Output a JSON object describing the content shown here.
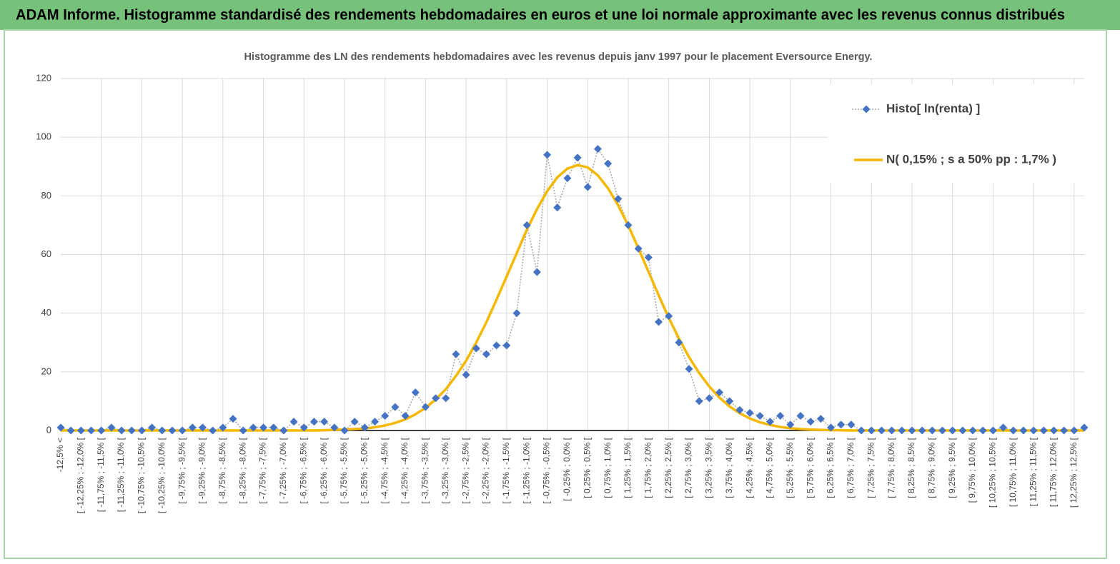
{
  "header": {
    "title": "ADAM Informe. Histogramme standardisé des rendements hebdomadaires en euros et une loi normale approximante avec les revenus connus distribués"
  },
  "chart_data": {
    "type": "line",
    "title": "Histogramme  des LN des rendements hebdomadaires avec les revenus depuis janv 1997 pour le placement Eversource Energy.",
    "categories": [
      "-12,5% <",
      null,
      "[ -12,25% ; -12,0% [",
      null,
      "[ -11,75% ; -11,5% [",
      null,
      "[ -11,25% ; -11,0% [",
      null,
      "[ -10,75% ; -10,5% [",
      null,
      "[ -10,25% ; -10,0% [",
      null,
      "[ -9,75% ; -9,5% [",
      null,
      "[ -9,25% ; -9,0% [",
      null,
      "[ -8,75% ; -8,5% [",
      null,
      "[ -8,25% ; -8,0% [",
      null,
      "[ -7,75% ; -7,5% [",
      null,
      "[ -7,25% ; -7,0% [",
      null,
      "[ -6,75% ; -6,5% [",
      null,
      "[ -6,25% ; -6,0% [",
      null,
      "[ -5,75% ; -5,5% [",
      null,
      "[ -5,25% ; -5,0% [",
      null,
      "[ -4,75% ; -4,5% [",
      null,
      "[ -4,25% ; -4,0% [",
      null,
      "[ -3,75% ; -3,5% [",
      null,
      "[ -3,25% ; -3,0% [",
      null,
      "[ -2,75% ; -2,5% [",
      null,
      "[ -2,25% ; -2,0% [",
      null,
      "[ -1,75% ; -1,5% [",
      null,
      "[ -1,25% ; -1,0% [",
      null,
      "[ -0,75% ; -0,5% [",
      null,
      "[ -0,25% ; 0,0% [",
      null,
      "[ 0,25% ; 0,5% [",
      null,
      "[ 0,75% ; 1,0% [",
      null,
      "[ 1,25% ; 1,5% [",
      null,
      "[ 1,75% ; 2,0% [",
      null,
      "[ 2,25% ; 2,5% [",
      null,
      "[ 2,75% ; 3,0% [",
      null,
      "[ 3,25% ; 3,5% [",
      null,
      "[ 3,75% ; 4,0% [",
      null,
      "[ 4,25% ; 4,5% [",
      null,
      "[ 4,75% ; 5,0% [",
      null,
      "[ 5,25% ; 5,5% [",
      null,
      "[ 5,75% ; 6,0% [",
      null,
      "[ 6,25% ; 6,5% [",
      null,
      "[ 6,75% ; 7,0% [",
      null,
      "[ 7,25% ; 7,5% [",
      null,
      "[ 7,75% ; 8,0% [",
      null,
      "[ 8,25% ; 8,5% [",
      null,
      "[ 8,75% ; 9,0% [",
      null,
      "[ 9,25% ; 9,5% [",
      null,
      "[ 9,75% ; 10,0% [",
      null,
      "[ 10,25% ; 10,5% [",
      null,
      "[ 10,75% ; 11,0% [",
      null,
      "[ 11,25% ; 11,5% [",
      null,
      "[ 11,75% ; 12,0% [",
      null,
      "[ 12,25% ; 12,5% [",
      null
    ],
    "series": [
      {
        "name": "Histo[ ln(renta) ]",
        "color": "#4472c4",
        "values": [
          1,
          0,
          0,
          0,
          0,
          1,
          0,
          0,
          0,
          1,
          0,
          0,
          0,
          1,
          1,
          0,
          1,
          4,
          0,
          1,
          1,
          1,
          0,
          3,
          1,
          3,
          3,
          1,
          0,
          3,
          1,
          3,
          5,
          8,
          5,
          13,
          8,
          11,
          11,
          26,
          19,
          28,
          26,
          29,
          29,
          40,
          70,
          54,
          94,
          76,
          86,
          93,
          83,
          96,
          91,
          79,
          70,
          62,
          59,
          37,
          39,
          30,
          21,
          10,
          11,
          13,
          10,
          7,
          6,
          5,
          3,
          5,
          2,
          5,
          3,
          4,
          1,
          2,
          2,
          0,
          0,
          0,
          0,
          0,
          0,
          0,
          0,
          0,
          0,
          0,
          0,
          0,
          0,
          1,
          0,
          0,
          0,
          0,
          0,
          0,
          0,
          1
        ]
      },
      {
        "name": "N( 0,15% ; s a 50% pp : 1,7% )",
        "color": "#f5b800",
        "values": [
          0,
          0,
          0,
          0,
          0,
          0,
          0,
          0,
          0,
          0,
          0,
          0,
          0,
          0,
          0,
          0,
          0,
          0,
          0,
          0,
          0,
          0,
          0,
          0,
          0,
          0,
          0.1,
          0.2,
          0.3,
          0.5,
          0.7,
          1.1,
          1.7,
          2.6,
          3.8,
          5.5,
          7.7,
          10.6,
          14.1,
          18.6,
          23.8,
          30.0,
          36.9,
          44.6,
          52.5,
          60.5,
          68.5,
          75.5,
          81.6,
          86.3,
          89.3,
          90.5,
          89.7,
          87.0,
          82.6,
          76.8,
          69.9,
          62.1,
          54.1,
          46.1,
          38.4,
          31.4,
          25.0,
          19.6,
          15.0,
          11.2,
          8.2,
          5.9,
          4.1,
          2.8,
          1.9,
          1.2,
          0.8,
          0.5,
          0.3,
          0.2,
          0.1,
          0.1,
          0,
          0,
          0,
          0,
          0,
          0,
          0,
          0,
          0,
          0,
          0,
          0,
          0,
          0,
          0,
          0,
          0,
          0,
          0,
          0,
          0,
          0,
          0,
          0
        ]
      }
    ],
    "ylim": [
      0,
      120
    ],
    "yticks": [
      0,
      20,
      40,
      60,
      80,
      100,
      120
    ],
    "grid": true,
    "legend": "top-right"
  }
}
